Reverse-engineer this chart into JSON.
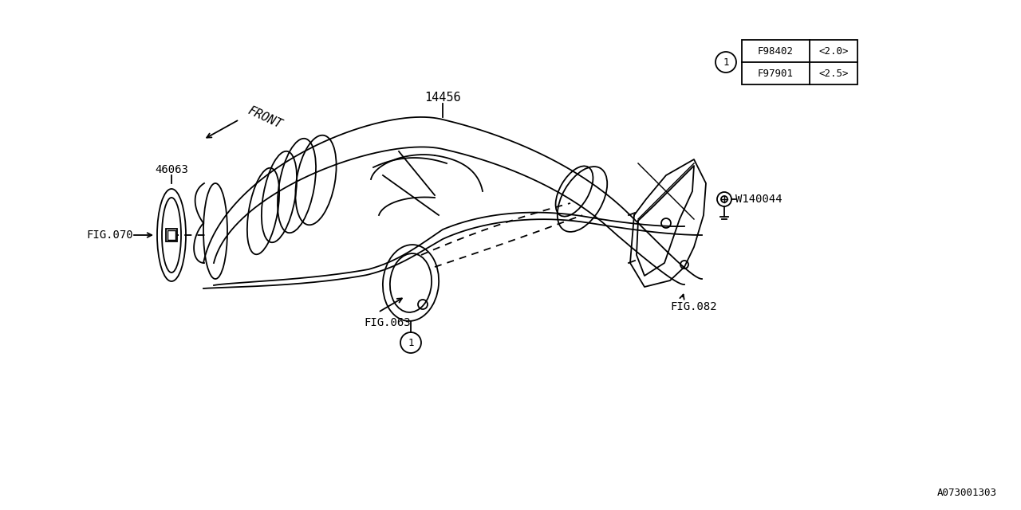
{
  "background_color": "#ffffff",
  "line_color": "#000000",
  "figure_width": 12.8,
  "figure_height": 6.4,
  "dpi": 100,
  "part_number_label": "14456",
  "part_46063": "46063",
  "fig070": "FIG.070",
  "fig063": "FIG.063",
  "fig082": "FIG.082",
  "w140044": "W140044",
  "table_part1": "F98402",
  "table_spec1": "<2.0>",
  "table_part2": "F97901",
  "table_spec2": "<2.5>",
  "circle_label": "1",
  "bottom_code": "A073001303",
  "front_label": "FRONT"
}
